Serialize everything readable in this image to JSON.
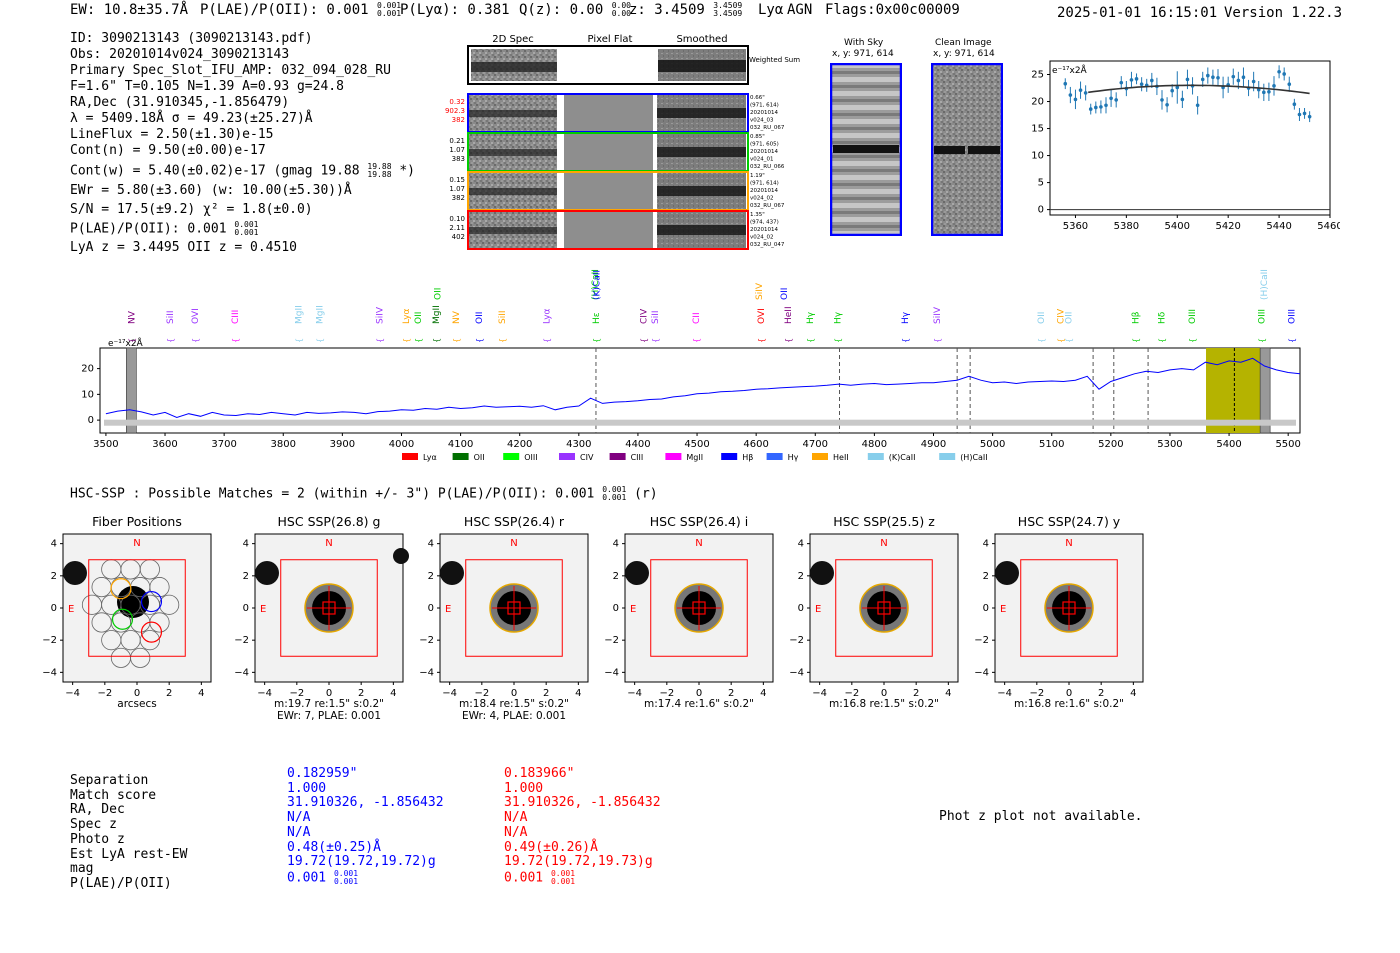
{
  "header": {
    "ew": "EW: 10.8±35.7Å",
    "plae": "P(LAE)/P(OII): 0.001",
    "plae_hi": "0.001",
    "plae_lo": "0.001",
    "plya": "P(Lyα): 0.381",
    "qz": "Q(z): 0.00",
    "qz_hi": "0.00",
    "qz_lo": "0.00",
    "z": "z: 3.4509",
    "z_hi": "3.4509",
    "z_lo": "3.4509",
    "line": "Lyα",
    "agn": "AGN",
    "flags": "Flags:0x00c00009",
    "datetime": "2025-01-01 16:15:01",
    "version": "Version 1.22.3"
  },
  "info": {
    "lines": [
      "ID: 3090213143 (3090213143.pdf)",
      "Obs: 20201014v024_3090213143",
      "Primary Spec_Slot_IFU_AMP: 032_094_028_RU",
      "F=1.6\"  T=0.105  N=1.39  A=0.93  g=24.8",
      "RA,Dec (31.910345,-1.856479)",
      "λ = 5409.18Å  σ = 49.23(±25.27)Å",
      "LineFlux = 2.50(±1.30)e-15",
      "Cont(n) = 9.50(±0.00)e-17",
      "Cont(w) = 5.40(±0.02)e-17 (gmag 19.88",
      "EWr = 5.80(±3.60) (w: 10.00(±5.30))Å",
      "S/N = 17.5(±9.2)  χ² = 1.8(±0.0)",
      "P(LAE)/P(OII): 0.001",
      "LyA z = 3.4495  OII z = 0.4510"
    ],
    "gmag_hi": "19.88",
    "gmag_lo": "19.88",
    "gmag_tail": "*)",
    "plae_hi": "0.001",
    "plae_lo": "0.001"
  },
  "cutouts": {
    "col_labels": [
      "2D Spec",
      "Pixel Flat",
      "Smoothed"
    ],
    "weighted_label": "Weighted Sum",
    "rows": [
      {
        "left": [
          "0.32",
          "902.3",
          "382"
        ],
        "left_color": "#ff0000",
        "right": [
          "0.66\"",
          "(971, 614)",
          "20201014",
          "v024_03",
          "032_RU_067"
        ],
        "frame": "#0000ff"
      },
      {
        "left": [
          "0.21",
          "1.07",
          "383"
        ],
        "left_color": "#000000",
        "right": [
          "0.85\"",
          "(971, 605)",
          "20201014",
          "v024_01",
          "032_RU_066"
        ],
        "frame": "#00cc00"
      },
      {
        "left": [
          "0.15",
          "1.07",
          "382"
        ],
        "left_color": "#000000",
        "right": [
          "1.19\"",
          "(971, 614)",
          "20201014",
          "v024_02",
          "032_RU_067"
        ],
        "frame": "#ffa500"
      },
      {
        "left": [
          "0.10",
          "2.11",
          "402"
        ],
        "left_color": "#000000",
        "right": [
          "1.35\"",
          "(974, 437)",
          "20201014",
          "v024_02",
          "032_RU_047"
        ],
        "frame": "#ff0000"
      }
    ],
    "with_sky_title": "With Sky",
    "with_sky_xy": "x, y: 971, 614",
    "clean_title": "Clean Image",
    "clean_xy": "x, y: 971, 614"
  },
  "small_chart": {
    "ylabel": "e⁻¹⁷x2Å",
    "x_ticks": [
      "5360",
      "5380",
      "5400",
      "5420",
      "5440",
      "5460"
    ],
    "y_ticks": [
      "0",
      "5",
      "10",
      "15",
      "20",
      "25"
    ]
  },
  "full_chart": {
    "ylabel": "e⁻¹⁷x2Å",
    "x_ticks": [
      "3500",
      "3600",
      "3700",
      "3800",
      "3900",
      "4000",
      "4100",
      "4200",
      "4300",
      "4400",
      "4500",
      "4600",
      "4700",
      "4800",
      "4900",
      "5000",
      "5100",
      "5200",
      "5300",
      "5400",
      "5500"
    ],
    "y_ticks": [
      "0",
      "10",
      "20"
    ],
    "legend": [
      {
        "name": "Lyα",
        "color": "#ff0000"
      },
      {
        "name": "OII",
        "color": "#007000"
      },
      {
        "name": "OIII",
        "color": "#00ff00"
      },
      {
        "name": "CIV",
        "color": "#9933ff"
      },
      {
        "name": "CIII",
        "color": "#800080"
      },
      {
        "name": "MgII",
        "color": "#ff00ff"
      },
      {
        "name": "Hβ",
        "color": "#0000ff"
      },
      {
        "name": "Hγ",
        "color": "#3366ff"
      },
      {
        "name": "HeII",
        "color": "#ffa500"
      },
      {
        "name": "(K)CaII",
        "color": "#87ceeb"
      },
      {
        "name": "(H)CaII",
        "color": "#87ceeb"
      }
    ],
    "line_labels": [
      {
        "t": "NV",
        "x": 3543,
        "c": "#800080"
      },
      {
        "t": "SiII",
        "x": 3608,
        "c": "#9933ff"
      },
      {
        "t": "OVI",
        "x": 3651,
        "c": "#9933ff"
      },
      {
        "t": "CIII",
        "x": 3718,
        "c": "#ff00ff"
      },
      {
        "t": "MgII",
        "x": 3826,
        "c": "#87ceeb"
      },
      {
        "t": "MgII",
        "x": 3861,
        "c": "#87ceeb"
      },
      {
        "t": "SiIV",
        "x": 3963,
        "c": "#9933ff"
      },
      {
        "t": "Lyα",
        "x": 4008,
        "c": "#ffa500"
      },
      {
        "t": "OII",
        "x": 4028,
        "c": "#00cc00"
      },
      {
        "t": "MgII",
        "x": 4058,
        "c": "#007000"
      },
      {
        "t": "NV",
        "x": 4092,
        "c": "#ffa500"
      },
      {
        "t": "OII",
        "x": 4131,
        "c": "#0000ff"
      },
      {
        "t": "SiII",
        "x": 4170,
        "c": "#ffa500"
      },
      {
        "t": "Lyα",
        "x": 4245,
        "c": "#9933ff"
      },
      {
        "t": "Hε",
        "x": 4329,
        "c": "#00cc00"
      },
      {
        "t": "CIV",
        "x": 4409,
        "c": "#800080"
      },
      {
        "t": "SiII",
        "x": 4429,
        "c": "#9933ff"
      },
      {
        "t": "CII",
        "x": 4498,
        "c": "#ff00ff"
      },
      {
        "t": "OVI",
        "x": 4608,
        "c": "#ff0000"
      },
      {
        "t": "HeII",
        "x": 4654,
        "c": "#800080"
      },
      {
        "t": "Hγ",
        "x": 4691,
        "c": "#00cc00"
      },
      {
        "t": "Hγ",
        "x": 4738,
        "c": "#00cc00"
      },
      {
        "t": "Hγ",
        "x": 4852,
        "c": "#0000ff"
      },
      {
        "t": "SiIV",
        "x": 4906,
        "c": "#9933ff"
      },
      {
        "t": "OII",
        "x": 5082,
        "c": "#87ceeb"
      },
      {
        "t": "CIV",
        "x": 5115,
        "c": "#ffa500"
      },
      {
        "t": "OII",
        "x": 5128,
        "c": "#87ceeb"
      },
      {
        "t": "Hβ",
        "x": 5242,
        "c": "#00cc00"
      },
      {
        "t": "Hδ",
        "x": 5286,
        "c": "#00cc00"
      },
      {
        "t": "OIII",
        "x": 5337,
        "c": "#00cc00"
      },
      {
        "t": "OIII",
        "x": 5455,
        "c": "#00cc00"
      },
      {
        "t": "OIII",
        "x": 5506,
        "c": "#0000ff"
      }
    ],
    "upper_labels": [
      {
        "t": "OII",
        "x": 4061,
        "c": "#00cc00"
      },
      {
        "t": "(H)CaII",
        "x": 4327,
        "c": "#00cc00"
      },
      {
        "t": "(K)CaII",
        "x": 4330,
        "c": "#0000ff"
      },
      {
        "t": "SiIV",
        "x": 4605,
        "c": "#ffa500"
      },
      {
        "t": "OII",
        "x": 4647,
        "c": "#0000ff"
      },
      {
        "t": "(H)CaII",
        "x": 5459,
        "c": "#87ceeb"
      }
    ]
  },
  "hsc": {
    "summary": "HSC-SSP : Possible Matches = 2 (within +/- 3\")  P(LAE)/P(OII): 0.001",
    "summary_hi": "0.001",
    "summary_lo": "0.001",
    "summary_tail": "(r)",
    "panels": [
      {
        "title": "Fiber Positions",
        "caption1": "arcsecs",
        "caption2": ""
      },
      {
        "title": "HSC SSP(26.8) g",
        "caption1": "m:19.7  re:1.5\"  s:0.2\"",
        "caption2": "EWr: 7, PLAE: 0.001"
      },
      {
        "title": "HSC SSP(26.4) r",
        "caption1": "m:18.4  re:1.5\"  s:0.2\"",
        "caption2": "EWr: 4, PLAE: 0.001"
      },
      {
        "title": "HSC SSP(26.4) i",
        "caption1": "m:17.4  re:1.6\"  s:0.2\"",
        "caption2": ""
      },
      {
        "title": "HSC SSP(25.5) z",
        "caption1": "m:16.8  re:1.5\"  s:0.2\"",
        "caption2": ""
      },
      {
        "title": "HSC SSP(24.7) y",
        "caption1": "m:16.8  re:1.6\"  s:0.2\"",
        "caption2": ""
      }
    ],
    "axis_ticks": [
      "-4",
      "-2",
      "0",
      "2",
      "4"
    ],
    "north": "N",
    "east": "E"
  },
  "matches": {
    "labels": [
      "Separation",
      "Match score",
      "RA, Dec",
      "Spec z",
      "Photo z",
      "Est LyA rest-EW",
      "mag",
      "P(LAE)/P(OII)"
    ],
    "blue": [
      "0.182959\"",
      "1.000",
      "31.910326, -1.856432",
      "N/A",
      "N/A",
      "0.48(±0.25)Å",
      "19.72(19.72,19.72)g",
      "0.001"
    ],
    "red": [
      "0.183966\"",
      "1.000",
      "31.910326, -1.856432",
      "N/A",
      "N/A",
      "0.49(±0.26)Å",
      "19.72(19.72,19.73)g",
      "0.001"
    ],
    "frac_hi": "0.001",
    "frac_lo": "0.001",
    "photz_msg": "Phot z plot not available."
  },
  "chart_data": [
    {
      "type": "scatter",
      "x": [
        5356,
        5358,
        5360,
        5362,
        5364,
        5366,
        5368,
        5370,
        5372,
        5374,
        5376,
        5378,
        5380,
        5382,
        5384,
        5386,
        5388,
        5390,
        5392,
        5394,
        5396,
        5398,
        5400,
        5402,
        5404,
        5406,
        5408,
        5410,
        5412,
        5414,
        5416,
        5418,
        5420,
        5422,
        5424,
        5426,
        5428,
        5430,
        5432,
        5434,
        5436,
        5438,
        5440,
        5442,
        5444,
        5446,
        5448,
        5450,
        5452
      ],
      "y": [
        23.3,
        21.2,
        20.4,
        22.1,
        21.6,
        18.6,
        18.9,
        19.0,
        19.3,
        20.6,
        20.3,
        23.5,
        22.4,
        24.0,
        24.2,
        23.2,
        23.0,
        23.9,
        22.8,
        20.3,
        19.4,
        22.0,
        22.6,
        20.4,
        24.1,
        22.9,
        19.3,
        24.1,
        24.8,
        24.5,
        24.4,
        22.6,
        23.1,
        24.6,
        23.9,
        24.5,
        22.5,
        23.7,
        22.2,
        21.7,
        21.8,
        22.9,
        25.5,
        25.1,
        23.2,
        19.5,
        17.6,
        17.8,
        17.2
      ],
      "yerr": [
        1.0,
        1.5,
        1.8,
        1.6,
        1.4,
        1.0,
        1.1,
        1.2,
        1.5,
        1.6,
        1.4,
        1.2,
        1.4,
        1.5,
        1.0,
        1.3,
        1.2,
        1.4,
        1.6,
        1.8,
        1.4,
        1.2,
        3.0,
        1.6,
        1.8,
        1.6,
        1.7,
        1.4,
        1.5,
        1.4,
        1.6,
        2.0,
        1.5,
        1.5,
        1.6,
        1.8,
        1.5,
        1.8,
        1.6,
        1.6,
        1.7,
        1.8,
        1.2,
        1.2,
        1.4,
        1.0,
        1.2,
        1.0,
        1.0
      ],
      "fit": {
        "x0": 5365,
        "x1": 5452,
        "y0": 21.7,
        "y_peak": 23.0,
        "x_peak": 5405,
        "y1": 21.5
      },
      "xlim": [
        5350,
        5460
      ],
      "ylim": [
        -1,
        27.5
      ],
      "ylabel": "e⁻¹⁷x2Å"
    },
    {
      "type": "line",
      "x": [
        3500,
        3520,
        3540,
        3560,
        3580,
        3600,
        3620,
        3640,
        3660,
        3680,
        3700,
        3720,
        3740,
        3760,
        3780,
        3800,
        3820,
        3840,
        3860,
        3880,
        3900,
        3920,
        3940,
        3960,
        3980,
        4000,
        4020,
        4040,
        4060,
        4080,
        4100,
        4120,
        4140,
        4160,
        4180,
        4200,
        4220,
        4240,
        4260,
        4280,
        4300,
        4320,
        4340,
        4360,
        4380,
        4400,
        4420,
        4440,
        4460,
        4480,
        4500,
        4520,
        4540,
        4560,
        4580,
        4600,
        4620,
        4640,
        4660,
        4680,
        4700,
        4720,
        4740,
        4760,
        4780,
        4800,
        4820,
        4840,
        4860,
        4880,
        4900,
        4920,
        4940,
        4960,
        4980,
        5000,
        5020,
        5040,
        5060,
        5080,
        5100,
        5120,
        5140,
        5160,
        5180,
        5200,
        5220,
        5240,
        5260,
        5280,
        5300,
        5320,
        5340,
        5360,
        5380,
        5400,
        5420,
        5440,
        5460,
        5480,
        5500,
        5520
      ],
      "y": [
        2.5,
        3.5,
        4.0,
        3.2,
        2.0,
        3.0,
        1.0,
        2.5,
        1.5,
        3.0,
        2.0,
        1.8,
        2.5,
        2.2,
        3.0,
        2.5,
        2.0,
        3.0,
        2.6,
        2.8,
        3.2,
        3.0,
        2.5,
        3.3,
        3.5,
        4.0,
        3.8,
        4.5,
        4.2,
        5.0,
        4.5,
        4.8,
        5.5,
        5.0,
        5.2,
        5.4,
        5.0,
        5.6,
        4.0,
        5.0,
        5.5,
        8.5,
        6.5,
        7.0,
        7.2,
        7.5,
        8.0,
        8.2,
        9.0,
        9.5,
        10.2,
        10.5,
        11.0,
        11.2,
        11.5,
        12.0,
        12.2,
        12.5,
        12.8,
        13.0,
        13.2,
        13.5,
        14.0,
        13.5,
        14.0,
        14.2,
        13.8,
        14.0,
        14.2,
        14.5,
        14.5,
        15.0,
        15.5,
        17.0,
        15.5,
        14.5,
        14.8,
        14.2,
        14.8,
        15.0,
        15.2,
        15.0,
        15.5,
        17.0,
        12.0,
        15.0,
        16.5,
        18.0,
        19.0,
        18.5,
        19.5,
        20.0,
        19.5,
        22.5,
        21.5,
        23.0,
        22.5,
        24.0,
        21.0,
        19.5,
        18.5,
        18.0
      ],
      "xlim": [
        3490,
        5520
      ],
      "ylim": [
        -5,
        28
      ],
      "ylabel": "e⁻¹⁷x2Å",
      "dashed_lines": [
        4329,
        4741,
        4940,
        4962,
        5170,
        5205,
        5263
      ],
      "highlight": {
        "x0": 5361,
        "x1": 5459,
        "color": "#b5b300"
      },
      "markers": [
        3543,
        5409,
        5461
      ]
    }
  ]
}
